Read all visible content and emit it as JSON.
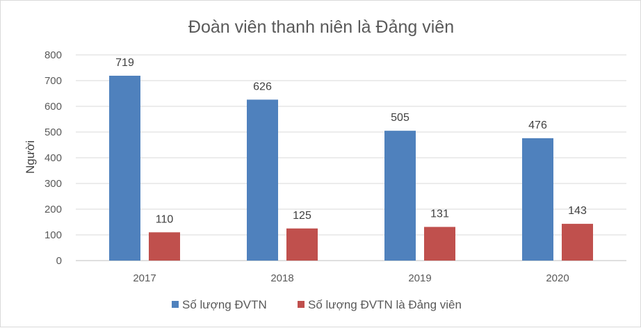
{
  "chart_data": {
    "type": "bar",
    "title": "Đoàn viên thanh niên là Đảng viên",
    "xlabel": "",
    "ylabel": "Người",
    "categories": [
      "2017",
      "2018",
      "2019",
      "2020"
    ],
    "ylim": [
      0,
      800
    ],
    "yticks": [
      "0",
      "100",
      "200",
      "300",
      "400",
      "500",
      "600",
      "700",
      "800"
    ],
    "grid": true,
    "legend_position": "bottom",
    "series": [
      {
        "name": "Số lượng ĐVTN",
        "values": [
          719,
          626,
          505,
          476
        ],
        "color": "#4f81bd"
      },
      {
        "name": "Số lượng ĐVTN là Đảng viên",
        "values": [
          110,
          125,
          131,
          143
        ],
        "color": "#c0504d"
      }
    ]
  }
}
